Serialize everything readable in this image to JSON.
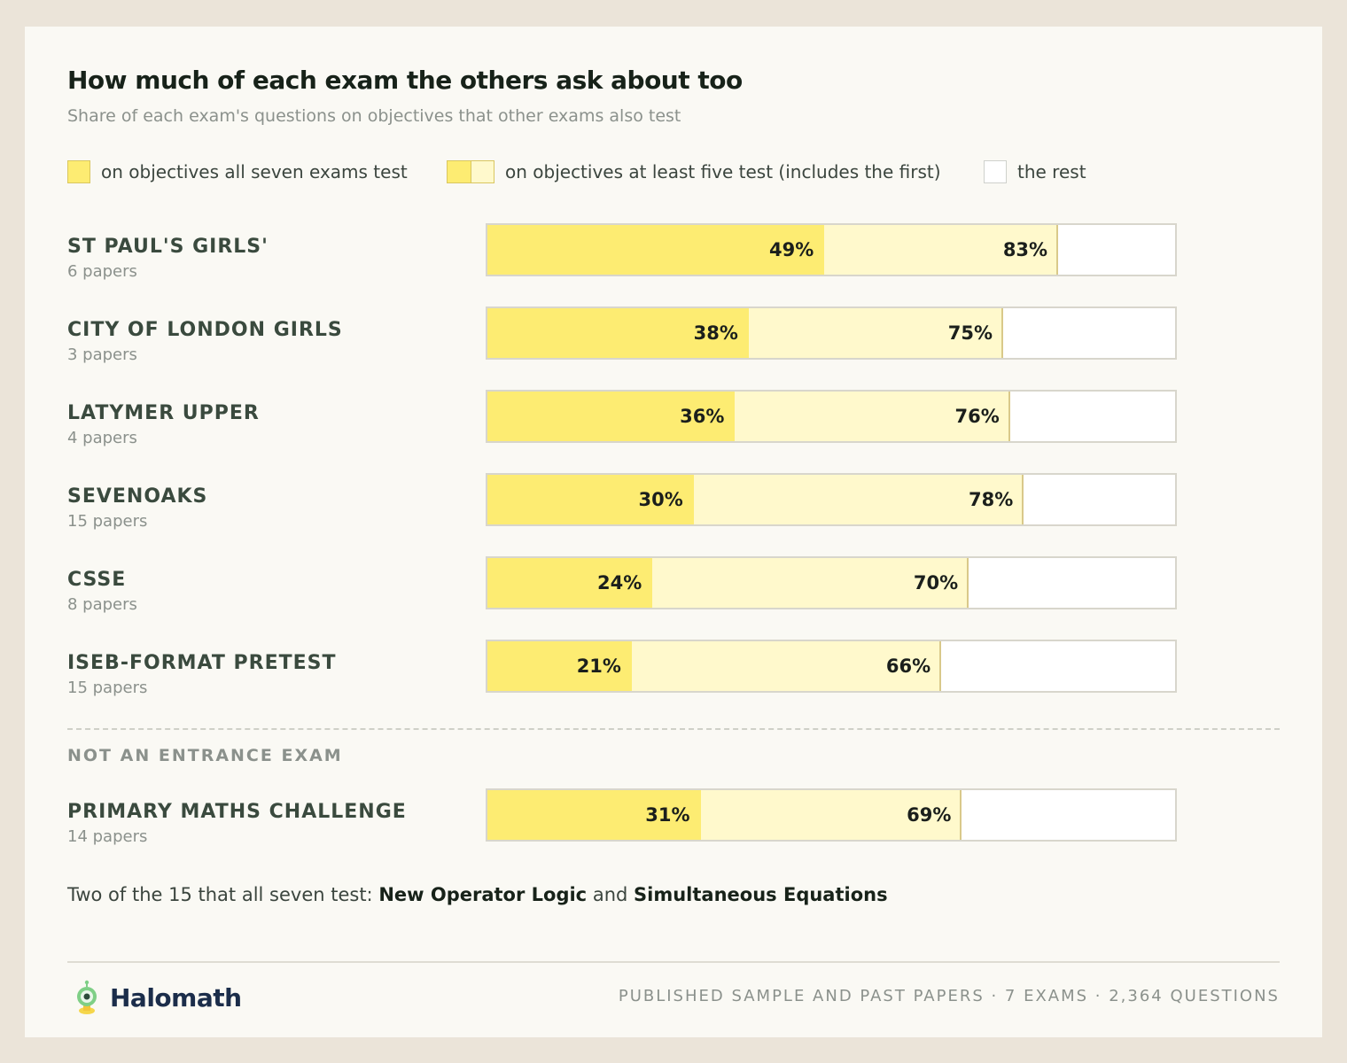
{
  "title": "How much of each exam the others ask about too",
  "subtitle": "Share of each exam's questions on objectives that other exams also test",
  "legend": {
    "all": "on objectives all seven exams test",
    "five": "on objectives at least five test (includes the first)",
    "rest": "the rest"
  },
  "section_label": "NOT AN ENTRANCE EXAM",
  "note": {
    "prefix": "Two of the 15 that all seven test:",
    "item1": "New Operator Logic",
    "joiner": "and",
    "item2": "Simultaneous Equations"
  },
  "footer": {
    "brand": "Halomath",
    "meta": "PUBLISHED SAMPLE AND PAST PAPERS · 7 EXAMS · 2,364 QUESTIONS"
  },
  "colors": {
    "all": "#fdec72",
    "five": "#fff9cc",
    "rest": "#ffffff"
  },
  "chart_data": {
    "type": "bar",
    "orientation": "horizontal",
    "stacked": "overlapping-cumulative",
    "xlim": [
      0,
      100
    ],
    "unit": "%",
    "series": [
      {
        "name": "on objectives all seven exams test",
        "key": "all"
      },
      {
        "name": "on objectives at least five test (includes the first)",
        "key": "five"
      }
    ],
    "rows": [
      {
        "name": "ST PAUL'S GIRLS'",
        "papers": "6 papers",
        "all": 49,
        "five": 83
      },
      {
        "name": "CITY OF LONDON GIRLS",
        "papers": "3 papers",
        "all": 38,
        "five": 75
      },
      {
        "name": "LATYMER UPPER",
        "papers": "4 papers",
        "all": 36,
        "five": 76
      },
      {
        "name": "SEVENOAKS",
        "papers": "15 papers",
        "all": 30,
        "five": 78
      },
      {
        "name": "CSSE",
        "papers": "8 papers",
        "all": 24,
        "five": 70
      },
      {
        "name": "ISEB-FORMAT PRETEST",
        "papers": "15 papers",
        "all": 21,
        "five": 66
      }
    ],
    "extra_rows": [
      {
        "name": "PRIMARY MATHS CHALLENGE",
        "papers": "14 papers",
        "all": 31,
        "five": 69
      }
    ]
  }
}
